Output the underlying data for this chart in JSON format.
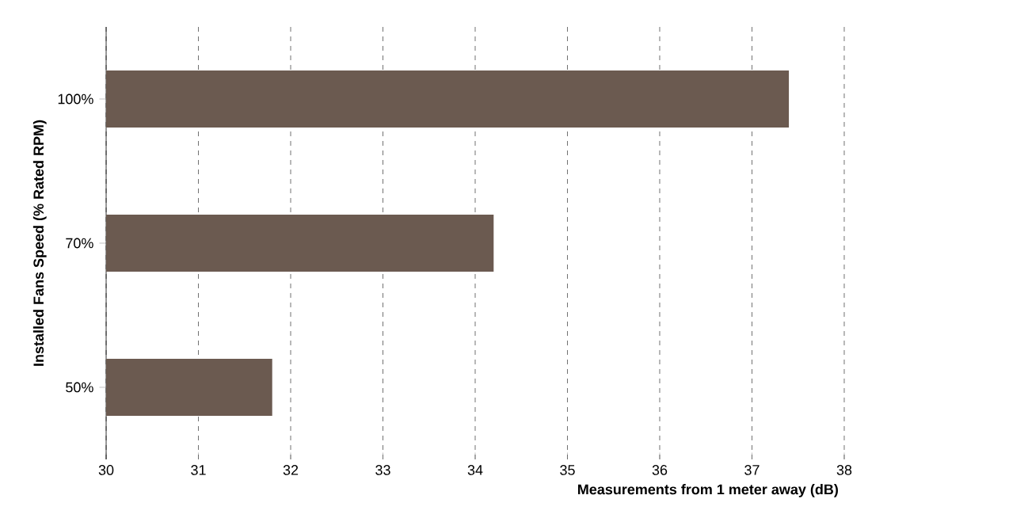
{
  "chart_data": {
    "type": "bar",
    "orientation": "horizontal",
    "xlabel": "Measurements from 1 meter away (dB)",
    "ylabel": "Installed Fans Speed (% Rated RPM)",
    "categories": [
      "100%",
      "70%",
      "50%"
    ],
    "values": [
      37.4,
      34.2,
      31.8
    ],
    "color": "#6b5a50",
    "xlim": [
      30,
      38
    ],
    "xticks": [
      30,
      31,
      32,
      33,
      34,
      35,
      36,
      37,
      38
    ],
    "grid": "x"
  }
}
